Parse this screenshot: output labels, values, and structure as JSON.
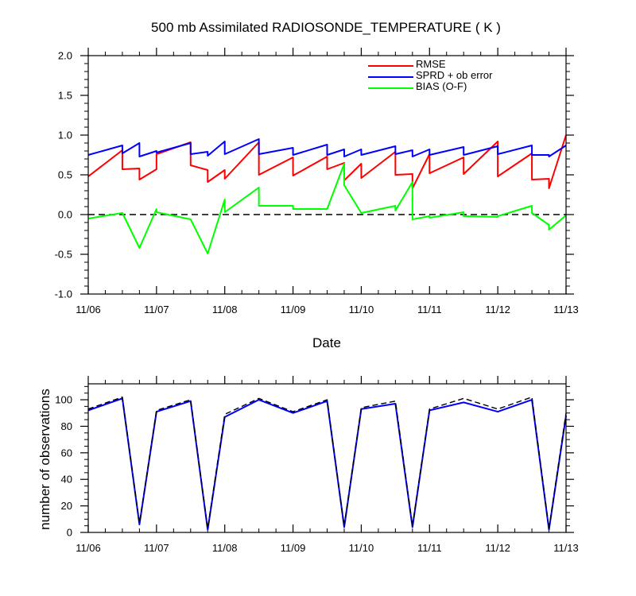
{
  "chart_data": [
    {
      "type": "line",
      "title": "500 mb Assimilated RADIOSONDE_TEMPERATURE ( K )",
      "xlabel": "Date",
      "ylabel": "",
      "xlim": [
        0,
        7
      ],
      "ylim": [
        -1.0,
        2.0
      ],
      "x_ticks": [
        0,
        1,
        2,
        3,
        4,
        5,
        6,
        7
      ],
      "x_tick_labels": [
        "11/06",
        "11/07",
        "11/08",
        "11/09",
        "11/10",
        "11/11",
        "11/12",
        "11/13"
      ],
      "y_ticks": [
        -1.0,
        -0.5,
        0.0,
        0.5,
        1.0,
        1.5,
        2.0
      ],
      "y_tick_labels": [
        "-1.0",
        "-0.5",
        "0.0",
        "0.5",
        "1.0",
        "1.5",
        "2.0"
      ],
      "reference_line": {
        "y": 0.0,
        "style": "dashed",
        "color": "#000000"
      },
      "legend_position": "top-right",
      "series": [
        {
          "name": "RMSE",
          "color": "#ff0000",
          "points": [
            [
              0.0,
              0.48
            ],
            [
              0.5,
              0.81
            ],
            [
              0.5,
              0.57
            ],
            [
              0.75,
              0.58
            ],
            [
              0.75,
              0.44
            ],
            [
              1.0,
              0.57
            ],
            [
              1.0,
              0.57
            ],
            [
              1.0,
              0.76
            ],
            [
              1.5,
              0.91
            ],
            [
              1.5,
              0.62
            ],
            [
              1.75,
              0.56
            ],
            [
              1.75,
              0.41
            ],
            [
              2.0,
              0.56
            ],
            [
              2.0,
              0.45
            ],
            [
              2.5,
              0.91
            ],
            [
              2.5,
              0.5
            ],
            [
              3.0,
              0.72
            ],
            [
              3.0,
              0.49
            ],
            [
              3.5,
              0.73
            ],
            [
              3.5,
              0.57
            ],
            [
              3.75,
              0.65
            ],
            [
              3.75,
              0.43
            ],
            [
              4.0,
              0.64
            ],
            [
              4.0,
              0.46
            ],
            [
              4.5,
              0.79
            ],
            [
              4.5,
              0.5
            ],
            [
              4.75,
              0.51
            ],
            [
              4.75,
              0.33
            ],
            [
              5.0,
              0.76
            ],
            [
              5.0,
              0.52
            ],
            [
              5.5,
              0.72
            ],
            [
              5.5,
              0.51
            ],
            [
              6.0,
              0.92
            ],
            [
              6.0,
              0.48
            ],
            [
              6.5,
              0.77
            ],
            [
              6.5,
              0.44
            ],
            [
              6.75,
              0.45
            ],
            [
              6.75,
              0.33
            ],
            [
              7.0,
              1.0
            ]
          ]
        },
        {
          "name": "SPRD + ob error",
          "color": "#0000ff",
          "points": [
            [
              0.0,
              0.75
            ],
            [
              0.5,
              0.87
            ],
            [
              0.5,
              0.77
            ],
            [
              0.75,
              0.9
            ],
            [
              0.75,
              0.73
            ],
            [
              1.0,
              0.8
            ],
            [
              1.0,
              0.78
            ],
            [
              1.5,
              0.9
            ],
            [
              1.5,
              0.76
            ],
            [
              1.75,
              0.79
            ],
            [
              1.75,
              0.74
            ],
            [
              2.0,
              0.92
            ],
            [
              2.0,
              0.76
            ],
            [
              2.5,
              0.95
            ],
            [
              2.5,
              0.76
            ],
            [
              3.0,
              0.84
            ],
            [
              3.0,
              0.75
            ],
            [
              3.5,
              0.88
            ],
            [
              3.5,
              0.75
            ],
            [
              3.75,
              0.82
            ],
            [
              3.75,
              0.73
            ],
            [
              4.0,
              0.82
            ],
            [
              4.0,
              0.75
            ],
            [
              4.5,
              0.86
            ],
            [
              4.5,
              0.76
            ],
            [
              4.75,
              0.81
            ],
            [
              4.75,
              0.73
            ],
            [
              5.0,
              0.82
            ],
            [
              5.0,
              0.75
            ],
            [
              5.5,
              0.85
            ],
            [
              5.5,
              0.75
            ],
            [
              6.0,
              0.86
            ],
            [
              6.0,
              0.76
            ],
            [
              6.5,
              0.87
            ],
            [
              6.5,
              0.75
            ],
            [
              6.75,
              0.75
            ],
            [
              6.75,
              0.73
            ],
            [
              7.0,
              0.87
            ]
          ]
        },
        {
          "name": "BIAS (O-F)",
          "color": "#00ff00",
          "points": [
            [
              0.0,
              -0.05
            ],
            [
              0.5,
              0.02
            ],
            [
              0.75,
              -0.42
            ],
            [
              1.0,
              0.07
            ],
            [
              1.0,
              0.03
            ],
            [
              1.5,
              -0.06
            ],
            [
              1.75,
              -0.49
            ],
            [
              2.0,
              0.19
            ],
            [
              2.0,
              0.03
            ],
            [
              2.5,
              0.34
            ],
            [
              2.5,
              0.11
            ],
            [
              3.0,
              0.11
            ],
            [
              3.0,
              0.07
            ],
            [
              3.5,
              0.07
            ],
            [
              3.75,
              0.64
            ],
            [
              3.75,
              0.37
            ],
            [
              4.0,
              0.02
            ],
            [
              4.5,
              0.11
            ],
            [
              4.5,
              0.05
            ],
            [
              4.75,
              0.41
            ],
            [
              4.75,
              -0.06
            ],
            [
              5.0,
              -0.02
            ],
            [
              5.0,
              -0.04
            ],
            [
              5.5,
              0.03
            ],
            [
              5.5,
              -0.02
            ],
            [
              6.0,
              -0.03
            ],
            [
              6.0,
              -0.02
            ],
            [
              6.5,
              0.11
            ],
            [
              6.5,
              0.02
            ],
            [
              6.75,
              -0.13
            ],
            [
              6.75,
              -0.19
            ],
            [
              7.0,
              -0.01
            ]
          ]
        }
      ]
    },
    {
      "type": "line",
      "title": "",
      "xlabel": "",
      "ylabel": "number of observations",
      "xlim": [
        0,
        7
      ],
      "ylim": [
        0,
        112
      ],
      "x_ticks": [
        0,
        1,
        2,
        3,
        4,
        5,
        6,
        7
      ],
      "x_tick_labels": [
        "11/06",
        "11/07",
        "11/08",
        "11/09",
        "11/10",
        "11/11",
        "11/12",
        "11/13"
      ],
      "y_ticks": [
        0,
        20,
        40,
        60,
        80,
        100
      ],
      "y_tick_labels": [
        "0",
        "20",
        "40",
        "60",
        "80",
        "100"
      ],
      "series": [
        {
          "color": "#0000ff",
          "line_style": "solid",
          "points": [
            [
              0.0,
              92
            ],
            [
              0.5,
              101
            ],
            [
              0.75,
              6
            ],
            [
              1.0,
              91
            ],
            [
              1.5,
              99
            ],
            [
              1.75,
              2
            ],
            [
              2.0,
              87
            ],
            [
              2.5,
              100
            ],
            [
              3.0,
              90
            ],
            [
              3.5,
              99
            ],
            [
              3.75,
              4
            ],
            [
              4.0,
              93
            ],
            [
              4.5,
              97
            ],
            [
              4.75,
              4
            ],
            [
              5.0,
              92
            ],
            [
              5.5,
              98
            ],
            [
              6.0,
              91
            ],
            [
              6.5,
              100
            ],
            [
              6.75,
              2
            ],
            [
              7.0,
              88
            ]
          ]
        },
        {
          "color": "#000000",
          "line_style": "dashed",
          "points": [
            [
              0.0,
              93
            ],
            [
              0.5,
              102
            ],
            [
              0.75,
              7
            ],
            [
              1.0,
              92
            ],
            [
              1.5,
              100
            ],
            [
              1.75,
              3
            ],
            [
              2.0,
              89
            ],
            [
              2.5,
              101
            ],
            [
              3.0,
              91
            ],
            [
              3.5,
              100
            ],
            [
              3.75,
              5
            ],
            [
              4.0,
              94
            ],
            [
              4.5,
              99
            ],
            [
              4.75,
              5
            ],
            [
              5.0,
              93
            ],
            [
              5.5,
              101
            ],
            [
              6.0,
              93
            ],
            [
              6.5,
              102
            ],
            [
              6.75,
              3
            ],
            [
              7.0,
              90
            ]
          ]
        }
      ]
    }
  ]
}
